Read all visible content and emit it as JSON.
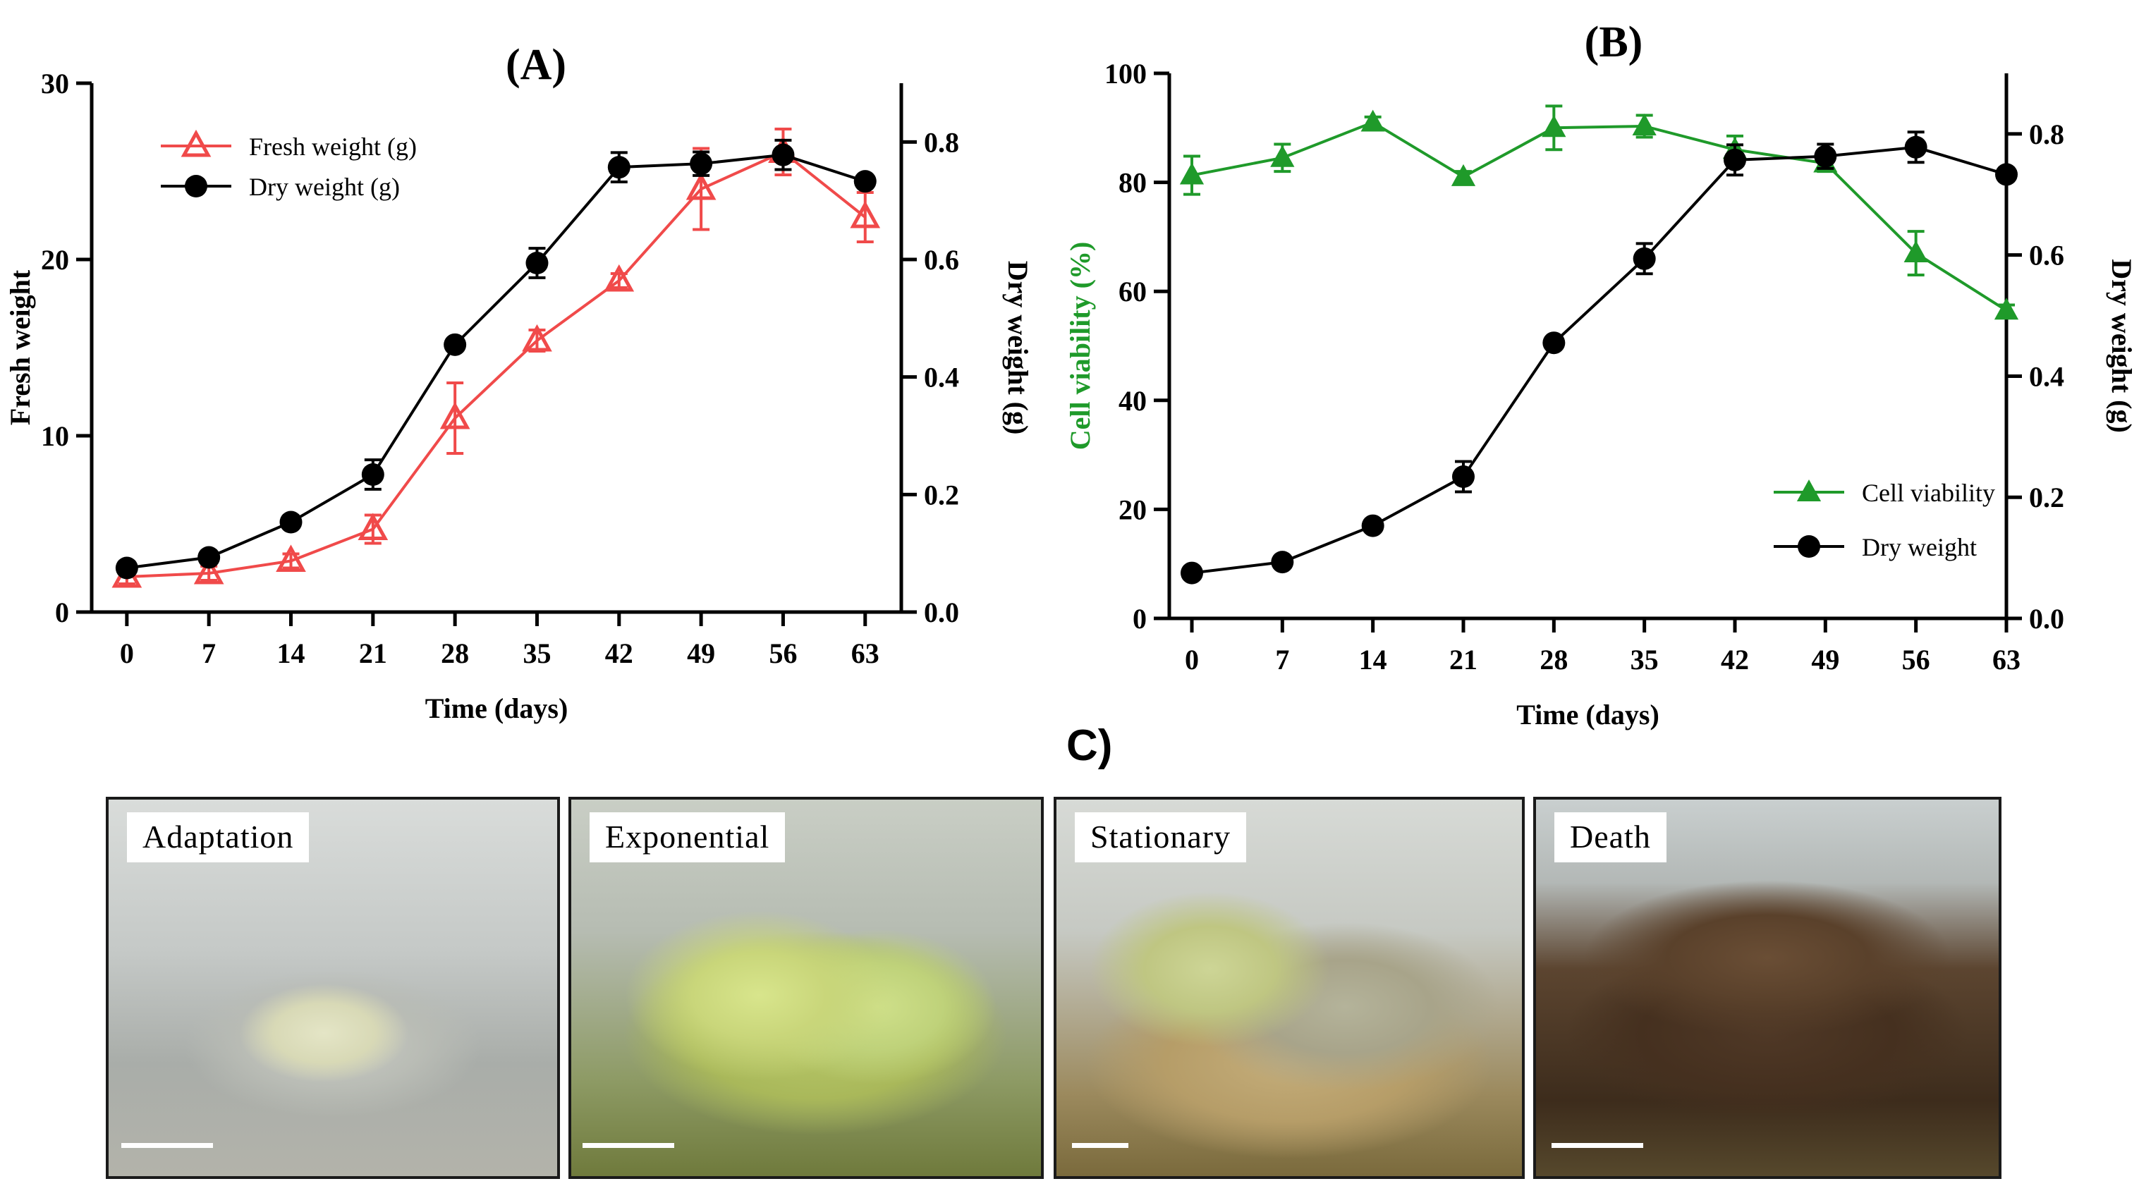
{
  "panel_labels": {
    "a": "(A)",
    "b": "(B)",
    "c": "C)"
  },
  "colors": {
    "fresh": "#f04a4a",
    "dry": "#000000",
    "viability": "#1f9a2a"
  },
  "chart_data": [
    {
      "id": "A",
      "type": "line",
      "title": "(A)",
      "xlabel": "Time (days)",
      "ylabel_left": "Fresh weight",
      "ylabel_right": "Dry weight (g)",
      "x": [
        0,
        7,
        14,
        21,
        28,
        35,
        42,
        49,
        56,
        63
      ],
      "x_ticks": [
        "0",
        "7",
        "14",
        "21",
        "28",
        "35",
        "42",
        "49",
        "56",
        "63"
      ],
      "xlim": [
        -3,
        65
      ],
      "ylim_left": [
        0,
        30
      ],
      "yticks_left": [
        "0",
        "10",
        "20",
        "30"
      ],
      "ylim_right": [
        0,
        0.9
      ],
      "yticks_right": [
        "0.0",
        "0.2",
        "0.4",
        "0.6",
        "0.8"
      ],
      "legend_position": "top-left",
      "series": [
        {
          "name": "Fresh weight (g)",
          "axis": "left",
          "marker": "triangle-open",
          "color": "#f04a4a",
          "values": [
            2.0,
            2.2,
            2.9,
            4.7,
            11.0,
            15.4,
            18.8,
            24.0,
            26.1,
            22.4
          ],
          "errors": [
            0.4,
            0.4,
            0.4,
            0.8,
            2.0,
            0.6,
            0.4,
            2.3,
            1.3,
            1.4
          ]
        },
        {
          "name": "Dry weight (g)",
          "axis": "right",
          "marker": "circle-filled",
          "color": "#000000",
          "values": [
            0.075,
            0.093,
            0.153,
            0.234,
            0.455,
            0.594,
            0.757,
            0.763,
            0.778,
            0.733
          ],
          "errors": [
            0.006,
            0.006,
            0.008,
            0.025,
            0.008,
            0.025,
            0.025,
            0.02,
            0.025,
            0.01
          ]
        }
      ]
    },
    {
      "id": "B",
      "type": "line",
      "title": "(B)",
      "xlabel": "Time (days)",
      "ylabel_left": "Cell viability (%)",
      "ylabel_right": "Dry weight (g)",
      "x": [
        0,
        7,
        14,
        21,
        28,
        35,
        42,
        49,
        56,
        63
      ],
      "x_ticks": [
        "0",
        "7",
        "14",
        "21",
        "28",
        "35",
        "42",
        "49",
        "56",
        "63"
      ],
      "xlim": [
        0,
        63
      ],
      "ylim_left": [
        0,
        100
      ],
      "yticks_left": [
        "0",
        "20",
        "40",
        "60",
        "80",
        "100"
      ],
      "ylim_right": [
        0,
        0.9
      ],
      "yticks_right": [
        "0.0",
        "0.2",
        "0.4",
        "0.6",
        "0.8"
      ],
      "legend_position": "bottom-right",
      "series": [
        {
          "name": "Cell viability",
          "axis": "left",
          "marker": "triangle-filled",
          "color": "#1f9a2a",
          "values": [
            81.3,
            84.5,
            91.0,
            81.0,
            90.0,
            90.3,
            86.0,
            83.5,
            67.0,
            56.5
          ],
          "errors": [
            3.5,
            2.5,
            1.0,
            1.0,
            4.0,
            2.0,
            2.5,
            1.5,
            4.0,
            1.0
          ]
        },
        {
          "name": "Dry weight",
          "axis": "right",
          "marker": "circle-filled",
          "color": "#000000",
          "values": [
            0.075,
            0.093,
            0.153,
            0.234,
            0.455,
            0.594,
            0.757,
            0.763,
            0.778,
            0.733
          ],
          "errors": [
            0.006,
            0.006,
            0.008,
            0.025,
            0.008,
            0.025,
            0.025,
            0.02,
            0.025,
            0.01
          ]
        }
      ]
    }
  ],
  "photos": [
    {
      "label": "Adaptation"
    },
    {
      "label": "Exponential"
    },
    {
      "label": "Stationary"
    },
    {
      "label": "Death"
    }
  ]
}
